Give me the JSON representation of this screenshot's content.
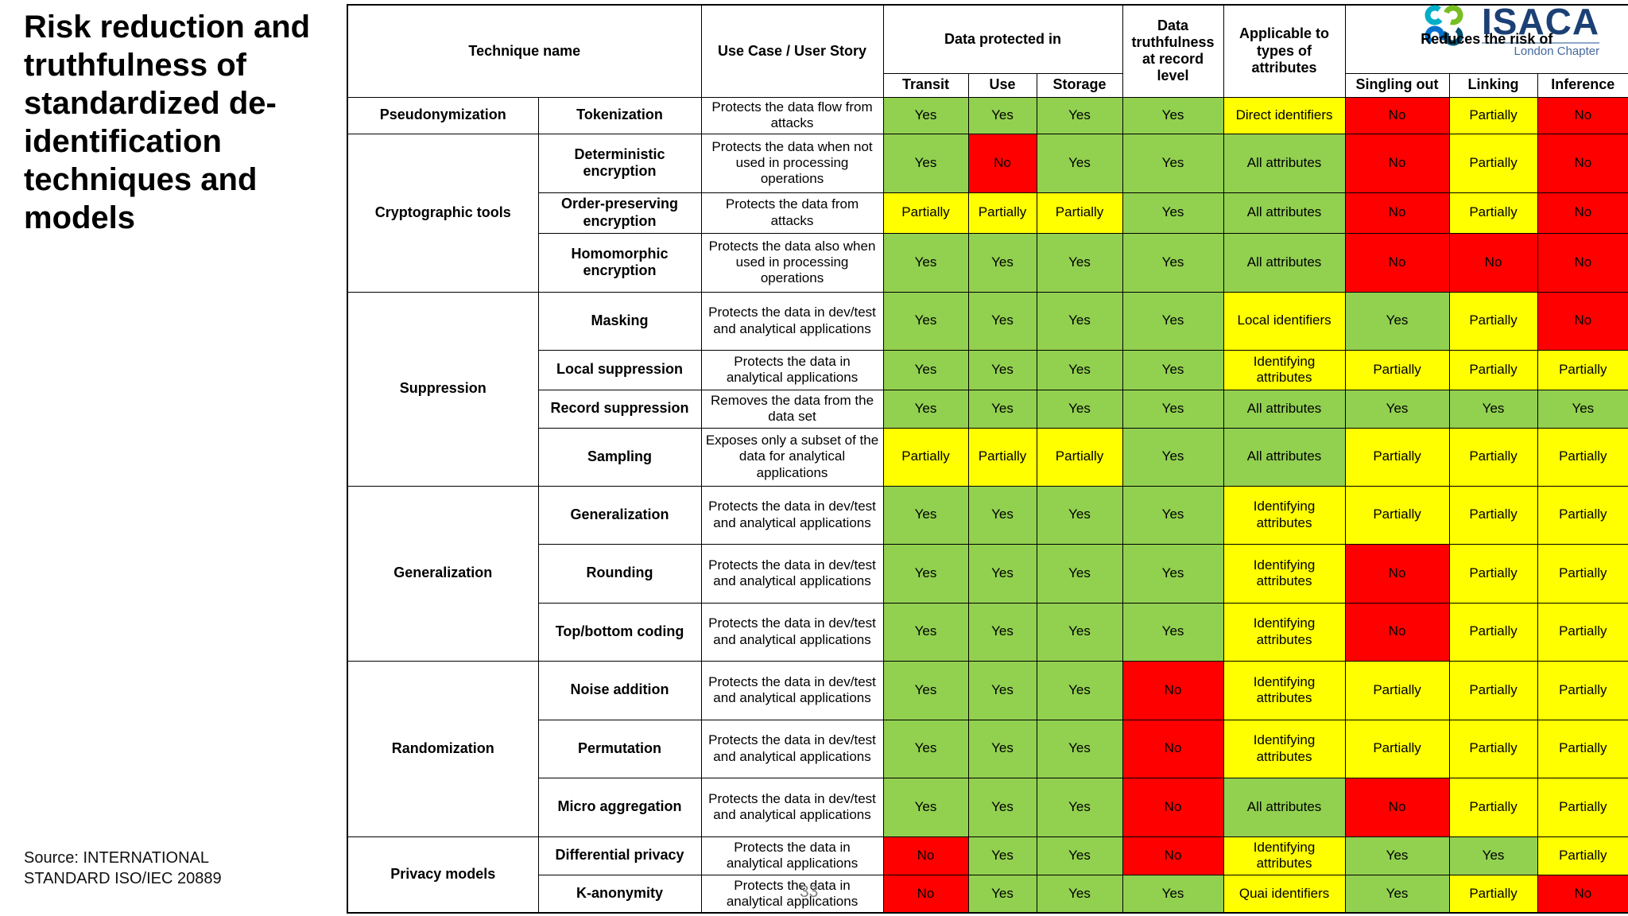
{
  "slide": {
    "title": "Risk reduction and truthfulness of standardized de-identification techniques and models",
    "source_line1": "Source: INTERNATIONAL",
    "source_line2": "STANDARD ISO/IEC 20889",
    "page_number": "33"
  },
  "logo": {
    "name": "ISACA",
    "subtitle": "London Chapter"
  },
  "colors": {
    "g": "#92D050",
    "y": "#FFFF00",
    "r": "#FF0000",
    "logo_navy": "#1B4075",
    "logo_teal": "#00AEC7",
    "logo_green": "#78BE20",
    "logo_blue": "#0072CE",
    "logo_dark_blue": "#004F71"
  },
  "table": {
    "headers": {
      "technique_name": "Technique name",
      "use_case": "Use Case / User Story",
      "data_protected_in": "Data protected in",
      "transit": "Transit",
      "use": "Use",
      "storage": "Storage",
      "truthfulness": "Data truthfulness at record level",
      "applicable": "Applicable to types of attributes",
      "reduces_risk": "Reduces the risk of",
      "singling_out": "Singling out",
      "linking": "Linking",
      "inference": "Inference"
    },
    "rows": [
      {
        "category": "Pseudonymization",
        "category_rowspan": 1,
        "technique": "Tokenization",
        "use_case": "Protects the data flow from attacks",
        "cells": [
          {
            "t": "Yes",
            "c": "g"
          },
          {
            "t": "Yes",
            "c": "g"
          },
          {
            "t": "Yes",
            "c": "g"
          },
          {
            "t": "Yes",
            "c": "g"
          },
          {
            "t": "Direct identifiers",
            "c": "y"
          },
          {
            "t": "No",
            "c": "r"
          },
          {
            "t": "Partially",
            "c": "y"
          },
          {
            "t": "No",
            "c": "r"
          }
        ]
      },
      {
        "category": "Cryptographic tools",
        "category_rowspan": 3,
        "technique": "Deterministic encryption",
        "use_case": "Protects the data when not used in processing operations",
        "cells": [
          {
            "t": "Yes",
            "c": "g"
          },
          {
            "t": "No",
            "c": "r"
          },
          {
            "t": "Yes",
            "c": "g"
          },
          {
            "t": "Yes",
            "c": "g"
          },
          {
            "t": "All attributes",
            "c": "g"
          },
          {
            "t": "No",
            "c": "r"
          },
          {
            "t": "Partially",
            "c": "y"
          },
          {
            "t": "No",
            "c": "r"
          }
        ]
      },
      {
        "technique": "Order-preserving encryption",
        "use_case": "Protects the data from attacks",
        "cells": [
          {
            "t": "Partially",
            "c": "y"
          },
          {
            "t": "Partially",
            "c": "y"
          },
          {
            "t": "Partially",
            "c": "y"
          },
          {
            "t": "Yes",
            "c": "g"
          },
          {
            "t": "All attributes",
            "c": "g"
          },
          {
            "t": "No",
            "c": "r"
          },
          {
            "t": "Partially",
            "c": "y"
          },
          {
            "t": "No",
            "c": "r"
          }
        ]
      },
      {
        "technique": "Homomorphic encryption",
        "use_case": "Protects the data also when used in processing operations",
        "cells": [
          {
            "t": "Yes",
            "c": "g"
          },
          {
            "t": "Yes",
            "c": "g"
          },
          {
            "t": "Yes",
            "c": "g"
          },
          {
            "t": "Yes",
            "c": "g"
          },
          {
            "t": "All attributes",
            "c": "g"
          },
          {
            "t": "No",
            "c": "r"
          },
          {
            "t": "No",
            "c": "r"
          },
          {
            "t": "No",
            "c": "r"
          }
        ]
      },
      {
        "category": "Suppression",
        "category_rowspan": 4,
        "technique": "Masking",
        "use_case": "Protects the data in dev/test and analytical applications",
        "cells": [
          {
            "t": "Yes",
            "c": "g"
          },
          {
            "t": "Yes",
            "c": "g"
          },
          {
            "t": "Yes",
            "c": "g"
          },
          {
            "t": "Yes",
            "c": "g"
          },
          {
            "t": "Local identifiers",
            "c": "y"
          },
          {
            "t": "Yes",
            "c": "g"
          },
          {
            "t": "Partially",
            "c": "y"
          },
          {
            "t": "No",
            "c": "r"
          }
        ]
      },
      {
        "technique": "Local suppression",
        "use_case": "Protects the data in analytical applications",
        "cells": [
          {
            "t": "Yes",
            "c": "g"
          },
          {
            "t": "Yes",
            "c": "g"
          },
          {
            "t": "Yes",
            "c": "g"
          },
          {
            "t": "Yes",
            "c": "g"
          },
          {
            "t": "Identifying attributes",
            "c": "y"
          },
          {
            "t": "Partially",
            "c": "y"
          },
          {
            "t": "Partially",
            "c": "y"
          },
          {
            "t": "Partially",
            "c": "y"
          }
        ]
      },
      {
        "technique": "Record suppression",
        "use_case": "Removes the data from the data set",
        "cells": [
          {
            "t": "Yes",
            "c": "g"
          },
          {
            "t": "Yes",
            "c": "g"
          },
          {
            "t": "Yes",
            "c": "g"
          },
          {
            "t": "Yes",
            "c": "g"
          },
          {
            "t": "All attributes",
            "c": "g"
          },
          {
            "t": "Yes",
            "c": "g"
          },
          {
            "t": "Yes",
            "c": "g"
          },
          {
            "t": "Yes",
            "c": "g"
          }
        ]
      },
      {
        "technique": "Sampling",
        "use_case": "Exposes only a subset of the data for analytical applications",
        "cells": [
          {
            "t": "Partially",
            "c": "y"
          },
          {
            "t": "Partially",
            "c": "y"
          },
          {
            "t": "Partially",
            "c": "y"
          },
          {
            "t": "Yes",
            "c": "g"
          },
          {
            "t": "All attributes",
            "c": "g"
          },
          {
            "t": "Partially",
            "c": "y"
          },
          {
            "t": "Partially",
            "c": "y"
          },
          {
            "t": "Partially",
            "c": "y"
          }
        ]
      },
      {
        "category": "Generalization",
        "category_rowspan": 3,
        "technique": "Generalization",
        "use_case": "Protects the data in dev/test and analytical applications",
        "cells": [
          {
            "t": "Yes",
            "c": "g"
          },
          {
            "t": "Yes",
            "c": "g"
          },
          {
            "t": "Yes",
            "c": "g"
          },
          {
            "t": "Yes",
            "c": "g"
          },
          {
            "t": "Identifying attributes",
            "c": "y"
          },
          {
            "t": "Partially",
            "c": "y"
          },
          {
            "t": "Partially",
            "c": "y"
          },
          {
            "t": "Partially",
            "c": "y"
          }
        ]
      },
      {
        "technique": "Rounding",
        "use_case": "Protects the data in dev/test and analytical applications",
        "cells": [
          {
            "t": "Yes",
            "c": "g"
          },
          {
            "t": "Yes",
            "c": "g"
          },
          {
            "t": "Yes",
            "c": "g"
          },
          {
            "t": "Yes",
            "c": "g"
          },
          {
            "t": "Identifying attributes",
            "c": "y"
          },
          {
            "t": "No",
            "c": "r"
          },
          {
            "t": "Partially",
            "c": "y"
          },
          {
            "t": "Partially",
            "c": "y"
          }
        ]
      },
      {
        "technique": "Top/bottom coding",
        "use_case": "Protects the data in dev/test and analytical applications",
        "cells": [
          {
            "t": "Yes",
            "c": "g"
          },
          {
            "t": "Yes",
            "c": "g"
          },
          {
            "t": "Yes",
            "c": "g"
          },
          {
            "t": "Yes",
            "c": "g"
          },
          {
            "t": "Identifying attributes",
            "c": "y"
          },
          {
            "t": "No",
            "c": "r"
          },
          {
            "t": "Partially",
            "c": "y"
          },
          {
            "t": "Partially",
            "c": "y"
          }
        ]
      },
      {
        "category": "Randomization",
        "category_rowspan": 3,
        "technique": "Noise addition",
        "use_case": "Protects the data in dev/test and analytical applications",
        "cells": [
          {
            "t": "Yes",
            "c": "g"
          },
          {
            "t": "Yes",
            "c": "g"
          },
          {
            "t": "Yes",
            "c": "g"
          },
          {
            "t": "No",
            "c": "r"
          },
          {
            "t": "Identifying attributes",
            "c": "y"
          },
          {
            "t": "Partially",
            "c": "y"
          },
          {
            "t": "Partially",
            "c": "y"
          },
          {
            "t": "Partially",
            "c": "y"
          }
        ]
      },
      {
        "technique": "Permutation",
        "use_case": "Protects the data in dev/test and analytical applications",
        "cells": [
          {
            "t": "Yes",
            "c": "g"
          },
          {
            "t": "Yes",
            "c": "g"
          },
          {
            "t": "Yes",
            "c": "g"
          },
          {
            "t": "No",
            "c": "r"
          },
          {
            "t": "Identifying attributes",
            "c": "y"
          },
          {
            "t": "Partially",
            "c": "y"
          },
          {
            "t": "Partially",
            "c": "y"
          },
          {
            "t": "Partially",
            "c": "y"
          }
        ]
      },
      {
        "technique": "Micro aggregation",
        "use_case": "Protects the data in dev/test and analytical applications",
        "cells": [
          {
            "t": "Yes",
            "c": "g"
          },
          {
            "t": "Yes",
            "c": "g"
          },
          {
            "t": "Yes",
            "c": "g"
          },
          {
            "t": "No",
            "c": "r"
          },
          {
            "t": "All attributes",
            "c": "g"
          },
          {
            "t": "No",
            "c": "r"
          },
          {
            "t": "Partially",
            "c": "y"
          },
          {
            "t": "Partially",
            "c": "y"
          }
        ]
      },
      {
        "category": "Privacy models",
        "category_rowspan": 2,
        "technique": "Differential privacy",
        "use_case": "Protects the data in analytical applications",
        "cells": [
          {
            "t": "No",
            "c": "r"
          },
          {
            "t": "Yes",
            "c": "g"
          },
          {
            "t": "Yes",
            "c": "g"
          },
          {
            "t": "No",
            "c": "r"
          },
          {
            "t": "Identifying attributes",
            "c": "y"
          },
          {
            "t": "Yes",
            "c": "g"
          },
          {
            "t": "Yes",
            "c": "g"
          },
          {
            "t": "Partially",
            "c": "y"
          }
        ]
      },
      {
        "technique": "K-anonymity",
        "use_case": "Protects the data in analytical applications",
        "cells": [
          {
            "t": "No",
            "c": "r"
          },
          {
            "t": "Yes",
            "c": "g"
          },
          {
            "t": "Yes",
            "c": "g"
          },
          {
            "t": "Yes",
            "c": "g"
          },
          {
            "t": "Quai identifiers",
            "c": "y"
          },
          {
            "t": "Yes",
            "c": "g"
          },
          {
            "t": "Partially",
            "c": "y"
          },
          {
            "t": "No",
            "c": "r"
          }
        ]
      }
    ]
  }
}
